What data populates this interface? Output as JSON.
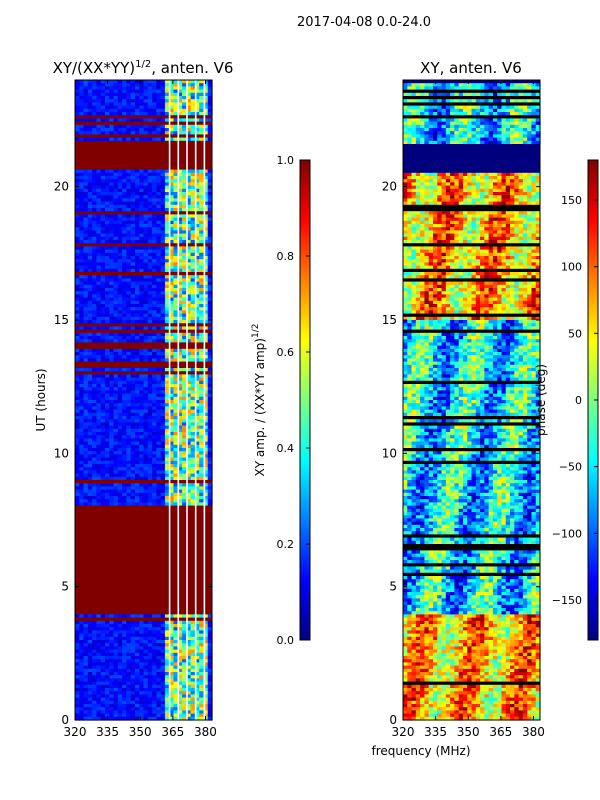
{
  "figure": {
    "suptitle": "2017-04-08 0.0-24.0",
    "shared_xlabel": "frequency (MHz)"
  },
  "colors": {
    "jet": [
      "#00007f",
      "#0000ff",
      "#007fff",
      "#00ffff",
      "#7fff7f",
      "#ffff00",
      "#ff7f00",
      "#ff0000",
      "#7f0000"
    ],
    "saturated_row": "#800000",
    "flagged_row": "#00007f",
    "divider": "#000000"
  },
  "chart_data": [
    {
      "type": "heatmap",
      "title_base": "XY/(XX*YY)",
      "title_exp": "1/2",
      "title_tail": ", anten. V6",
      "xlabel": "",
      "ylabel": "UT (hours)",
      "xlim": [
        320,
        383
      ],
      "ylim": [
        0,
        24
      ],
      "xticks": [
        "320",
        "335",
        "350",
        "365",
        "380"
      ],
      "xtick_values": [
        320,
        335,
        350,
        365,
        380
      ],
      "yticks": [
        "0",
        "5",
        "10",
        "15",
        "20"
      ],
      "ytick_values": [
        0,
        5,
        10,
        15,
        20
      ],
      "active_band_mhz": [
        361,
        381
      ],
      "saturated_blocks_hours": [
        [
          4.0,
          8.0
        ],
        [
          20.6,
          21.7
        ],
        [
          14.5,
          14.7
        ]
      ],
      "colorbar": {
        "label_base": "XY amp. / (XX*YY amp)",
        "label_exp": "1/2",
        "range": [
          0.0,
          1.0
        ],
        "ticks": [
          "0.0",
          "0.2",
          "0.4",
          "0.6",
          "0.8",
          "1.0"
        ],
        "tick_values": [
          0.0,
          0.2,
          0.4,
          0.6,
          0.8,
          1.0
        ]
      }
    },
    {
      "type": "heatmap",
      "title": "XY, anten. V6",
      "xlabel": "frequency (MHz)",
      "ylabel": "",
      "xlim": [
        320,
        383
      ],
      "ylim": [
        0,
        24
      ],
      "xticks": [
        "320",
        "335",
        "350",
        "365",
        "380"
      ],
      "xtick_values": [
        320,
        335,
        350,
        365,
        380
      ],
      "yticks": [
        "0",
        "5",
        "10",
        "15",
        "20"
      ],
      "ytick_values": [
        0,
        5,
        10,
        15,
        20
      ],
      "flagged_blocks_hours": [
        [
          20.5,
          21.6
        ],
        [
          23.9,
          24.0
        ]
      ],
      "colorbar": {
        "label": "phase (deg)",
        "range": [
          -180,
          180
        ],
        "ticks": [
          "−150",
          "−100",
          "−50",
          "0",
          "50",
          "100",
          "150"
        ],
        "tick_values": [
          -150,
          -100,
          -50,
          0,
          50,
          100,
          150
        ]
      }
    }
  ]
}
